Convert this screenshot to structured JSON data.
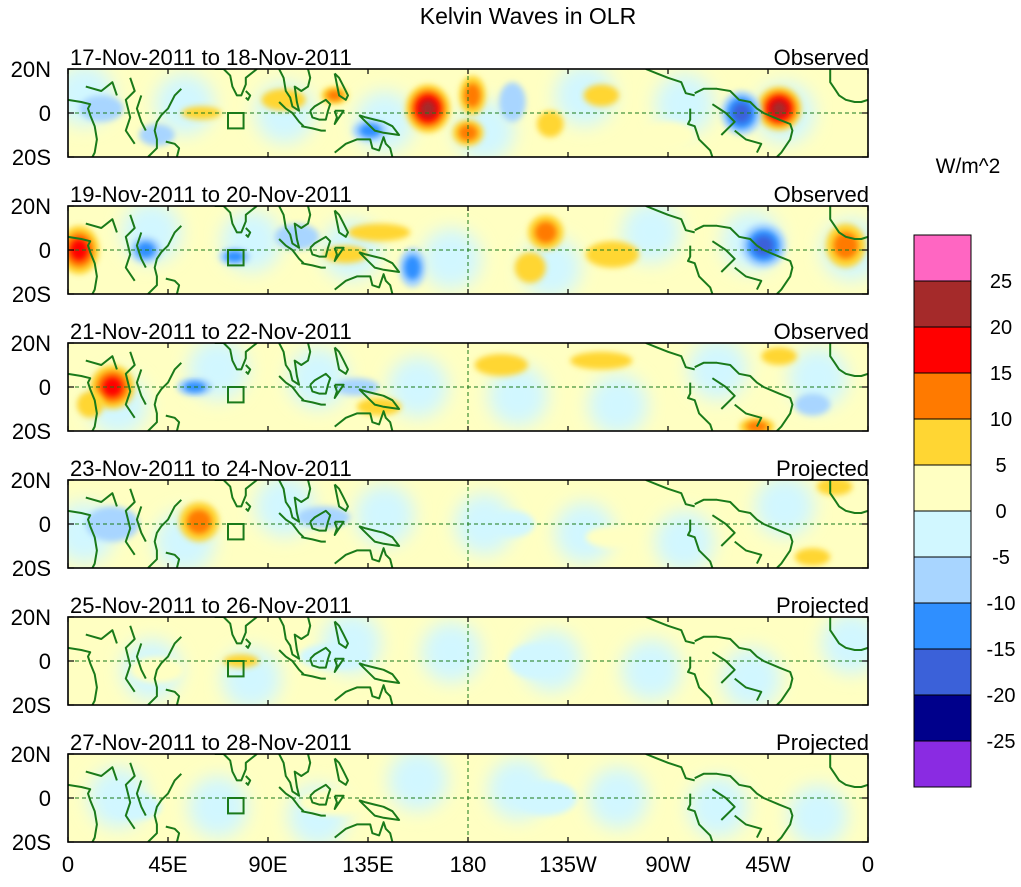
{
  "chart_data": {
    "type": "heatmap",
    "title": "Kelvin Waves in OLR",
    "variable": "OLR anomaly",
    "units_label": "W/m^2",
    "lon_range": [
      0,
      360
    ],
    "lat_range": [
      -20,
      20
    ],
    "x_ticks": [
      {
        "lon": 0,
        "label": "0"
      },
      {
        "lon": 45,
        "label": "45E"
      },
      {
        "lon": 90,
        "label": "90E"
      },
      {
        "lon": 135,
        "label": "135E"
      },
      {
        "lon": 180,
        "label": "180"
      },
      {
        "lon": 225,
        "label": "135W"
      },
      {
        "lon": 270,
        "label": "90W"
      },
      {
        "lon": 315,
        "label": "45W"
      },
      {
        "lon": 360,
        "label": "0"
      }
    ],
    "y_ticks": [
      {
        "lat": 20,
        "label": "20N"
      },
      {
        "lat": 0,
        "label": "0"
      },
      {
        "lat": -20,
        "label": "20S"
      }
    ],
    "colorbar": {
      "label": "W/m^2",
      "levels": [
        "25",
        "20",
        "15",
        "10",
        "5",
        "0",
        "-5",
        "-10",
        "-15",
        "-20",
        "-25"
      ],
      "colors": [
        "#ff66c2",
        "#a52a2a",
        "#ff0000",
        "#ff7a00",
        "#ffd633",
        "#ffffc2",
        "#d1f7ff",
        "#a8d5ff",
        "#2f8fff",
        "#3b61d9",
        "#00008b",
        "#8a2be2"
      ]
    },
    "reference_box": {
      "lon": [
        72,
        79
      ],
      "lat": [
        -7,
        0
      ]
    },
    "panels": [
      {
        "date_range": "17-Nov-2011 to 18-Nov-2011",
        "status": "Observed",
        "anomalies": [
          {
            "lon": 162,
            "lat": 2,
            "rlon": 10,
            "rlat": 11,
            "value": 21
          },
          {
            "lon": 182,
            "lat": 8,
            "rlon": 6,
            "rlat": 9,
            "value": 11
          },
          {
            "lon": 180,
            "lat": -9,
            "rlon": 7,
            "rlat": 6,
            "value": 13
          },
          {
            "lon": 320,
            "lat": 2,
            "rlon": 10,
            "rlat": 10,
            "value": 22
          },
          {
            "lon": 303,
            "lat": 0,
            "rlon": 9,
            "rlat": 10,
            "value": -19
          },
          {
            "lon": 120,
            "lat": 8,
            "rlon": 6,
            "rlat": 4,
            "value": 11
          },
          {
            "lon": 136,
            "lat": -8,
            "rlon": 8,
            "rlat": 5,
            "value": -11
          },
          {
            "lon": 60,
            "lat": 0,
            "rlon": 9,
            "rlat": 3,
            "value": 9
          },
          {
            "lon": 15,
            "lat": 2,
            "rlon": 10,
            "rlat": 6,
            "value": -9
          },
          {
            "lon": 200,
            "lat": 5,
            "rlon": 6,
            "rlat": 9,
            "value": -6
          },
          {
            "lon": 217,
            "lat": -5,
            "rlon": 6,
            "rlat": 6,
            "value": 7
          },
          {
            "lon": 240,
            "lat": 8,
            "rlon": 8,
            "rlat": 5,
            "value": 6
          },
          {
            "lon": 97,
            "lat": 6,
            "rlon": 10,
            "rlat": 5,
            "value": 6
          },
          {
            "lon": 40,
            "lat": -10,
            "rlon": 8,
            "rlat": 5,
            "value": -7
          },
          {
            "lon": 270,
            "lat": -10,
            "rlon": 12,
            "rlat": 6,
            "value": 4
          }
        ]
      },
      {
        "date_range": "19-Nov-2011 to 20-Nov-2011",
        "status": "Observed",
        "anomalies": [
          {
            "lon": 5,
            "lat": 0,
            "rlon": 9,
            "rlat": 11,
            "value": 16
          },
          {
            "lon": 350,
            "lat": 2,
            "rlon": 9,
            "rlat": 10,
            "value": 14
          },
          {
            "lon": 313,
            "lat": 2,
            "rlon": 10,
            "rlat": 10,
            "value": -17
          },
          {
            "lon": 215,
            "lat": 8,
            "rlon": 8,
            "rlat": 8,
            "value": 11
          },
          {
            "lon": 208,
            "lat": -8,
            "rlon": 7,
            "rlat": 7,
            "value": 8
          },
          {
            "lon": 140,
            "lat": 8,
            "rlon": 14,
            "rlat": 4,
            "value": 8
          },
          {
            "lon": 125,
            "lat": -2,
            "rlon": 10,
            "rlat": 4,
            "value": 6
          },
          {
            "lon": 35,
            "lat": 0,
            "rlon": 7,
            "rlat": 6,
            "value": -11
          },
          {
            "lon": 75,
            "lat": -3,
            "rlon": 7,
            "rlat": 4,
            "value": -11
          },
          {
            "lon": 155,
            "lat": -8,
            "rlon": 6,
            "rlat": 9,
            "value": -11
          },
          {
            "lon": 245,
            "lat": -2,
            "rlon": 12,
            "rlat": 6,
            "value": 5
          },
          {
            "lon": 103,
            "lat": 6,
            "rlon": 10,
            "rlat": 6,
            "value": -6
          }
        ]
      },
      {
        "date_range": "21-Nov-2011 to 22-Nov-2011",
        "status": "Observed",
        "anomalies": [
          {
            "lon": 20,
            "lat": 0,
            "rlon": 10,
            "rlat": 10,
            "value": 19
          },
          {
            "lon": 57,
            "lat": 0,
            "rlon": 8,
            "rlat": 4,
            "value": -11
          },
          {
            "lon": 130,
            "lat": 0,
            "rlon": 10,
            "rlat": 4,
            "value": -6
          },
          {
            "lon": 140,
            "lat": -9,
            "rlon": 10,
            "rlat": 4,
            "value": 6
          },
          {
            "lon": 195,
            "lat": 10,
            "rlon": 12,
            "rlat": 5,
            "value": 7
          },
          {
            "lon": 240,
            "lat": 12,
            "rlon": 14,
            "rlat": 4,
            "value": 6
          },
          {
            "lon": 320,
            "lat": 14,
            "rlon": 8,
            "rlat": 4,
            "value": 6
          },
          {
            "lon": 335,
            "lat": -8,
            "rlon": 8,
            "rlat": 5,
            "value": -9
          },
          {
            "lon": 310,
            "lat": -18,
            "rlon": 8,
            "rlat": 4,
            "value": 11
          },
          {
            "lon": 10,
            "lat": -8,
            "rlon": 6,
            "rlat": 6,
            "value": 7
          }
        ]
      },
      {
        "date_range": "23-Nov-2011 to 24-Nov-2011",
        "status": "Projected",
        "anomalies": [
          {
            "lon": 59,
            "lat": 1,
            "rlon": 9,
            "rlat": 9,
            "value": 14
          },
          {
            "lon": 20,
            "lat": 0,
            "rlon": 12,
            "rlat": 8,
            "value": -6
          },
          {
            "lon": 115,
            "lat": 3,
            "rlon": 12,
            "rlat": 5,
            "value": -7
          },
          {
            "lon": 335,
            "lat": -15,
            "rlon": 8,
            "rlat": 4,
            "value": 7
          },
          {
            "lon": 345,
            "lat": 17,
            "rlon": 8,
            "rlat": 4,
            "value": 6
          },
          {
            "lon": 200,
            "lat": 0,
            "rlon": 10,
            "rlat": 6,
            "value": -4
          },
          {
            "lon": 245,
            "lat": -6,
            "rlon": 12,
            "rlat": 5,
            "value": 3
          }
        ]
      },
      {
        "date_range": "25-Nov-2011 to 26-Nov-2011",
        "status": "Projected",
        "anomalies": [
          {
            "lon": 78,
            "lat": 0,
            "rlon": 8,
            "rlat": 3,
            "value": 6
          },
          {
            "lon": 120,
            "lat": 2,
            "rlon": 16,
            "rlat": 6,
            "value": -3
          },
          {
            "lon": 210,
            "lat": 0,
            "rlon": 12,
            "rlat": 8,
            "value": -3
          },
          {
            "lon": 40,
            "lat": -4,
            "rlon": 12,
            "rlat": 6,
            "value": 2
          }
        ]
      },
      {
        "date_range": "27-Nov-2011 to 28-Nov-2011",
        "status": "Projected",
        "anomalies": [
          {
            "lon": 215,
            "lat": 0,
            "rlon": 14,
            "rlat": 8,
            "value": -3
          },
          {
            "lon": 120,
            "lat": -2,
            "rlon": 16,
            "rlat": 6,
            "value": 2
          },
          {
            "lon": 30,
            "lat": -4,
            "rlon": 12,
            "rlat": 6,
            "value": -2
          }
        ]
      }
    ]
  }
}
